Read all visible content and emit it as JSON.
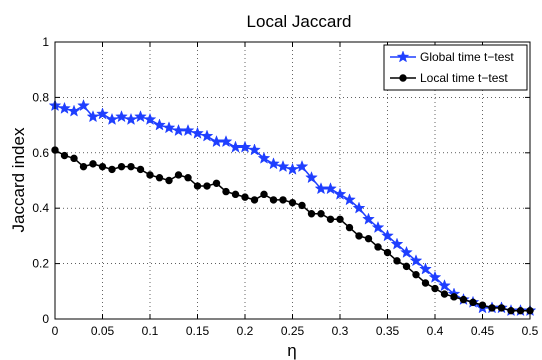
{
  "chart_data": {
    "type": "line",
    "title": "Local Jaccard",
    "xlabel": "η",
    "ylabel": "Jaccard index",
    "xlim": [
      0,
      0.5
    ],
    "ylim": [
      0,
      1
    ],
    "xticks": [
      "0",
      "0.05",
      "0.1",
      "0.15",
      "0.2",
      "0.25",
      "0.3",
      "0.35",
      "0.4",
      "0.45",
      "0.5"
    ],
    "yticks": [
      "0",
      "0.2",
      "0.4",
      "0.6",
      "0.8",
      "1"
    ],
    "grid": true,
    "legend_position": "top-right",
    "x": [
      0,
      0.01,
      0.02,
      0.03,
      0.04,
      0.05,
      0.06,
      0.07,
      0.08,
      0.09,
      0.1,
      0.11,
      0.12,
      0.13,
      0.14,
      0.15,
      0.16,
      0.17,
      0.18,
      0.19,
      0.2,
      0.21,
      0.22,
      0.23,
      0.24,
      0.25,
      0.26,
      0.27,
      0.28,
      0.29,
      0.3,
      0.31,
      0.32,
      0.33,
      0.34,
      0.35,
      0.36,
      0.37,
      0.38,
      0.39,
      0.4,
      0.41,
      0.42,
      0.43,
      0.44,
      0.45,
      0.46,
      0.47,
      0.48,
      0.49,
      0.5
    ],
    "series": [
      {
        "name": "Global time t−test",
        "color": "#1f3fff",
        "marker": "star",
        "values": [
          0.77,
          0.76,
          0.75,
          0.77,
          0.73,
          0.74,
          0.72,
          0.73,
          0.72,
          0.73,
          0.72,
          0.7,
          0.69,
          0.68,
          0.68,
          0.67,
          0.66,
          0.64,
          0.64,
          0.62,
          0.62,
          0.61,
          0.58,
          0.56,
          0.55,
          0.54,
          0.55,
          0.51,
          0.47,
          0.47,
          0.45,
          0.43,
          0.4,
          0.36,
          0.33,
          0.3,
          0.27,
          0.24,
          0.21,
          0.18,
          0.15,
          0.12,
          0.09,
          0.07,
          0.06,
          0.04,
          0.04,
          0.04,
          0.03,
          0.03,
          0.03
        ]
      },
      {
        "name": "Local time t−test",
        "color": "#000000",
        "marker": "circle",
        "values": [
          0.61,
          0.59,
          0.58,
          0.55,
          0.56,
          0.55,
          0.54,
          0.55,
          0.55,
          0.54,
          0.52,
          0.51,
          0.5,
          0.52,
          0.51,
          0.48,
          0.48,
          0.49,
          0.46,
          0.45,
          0.44,
          0.43,
          0.45,
          0.43,
          0.43,
          0.42,
          0.41,
          0.38,
          0.38,
          0.36,
          0.36,
          0.33,
          0.3,
          0.29,
          0.26,
          0.24,
          0.21,
          0.19,
          0.16,
          0.13,
          0.11,
          0.09,
          0.08,
          0.07,
          0.06,
          0.05,
          0.04,
          0.04,
          0.03,
          0.03,
          0.03
        ]
      }
    ]
  }
}
